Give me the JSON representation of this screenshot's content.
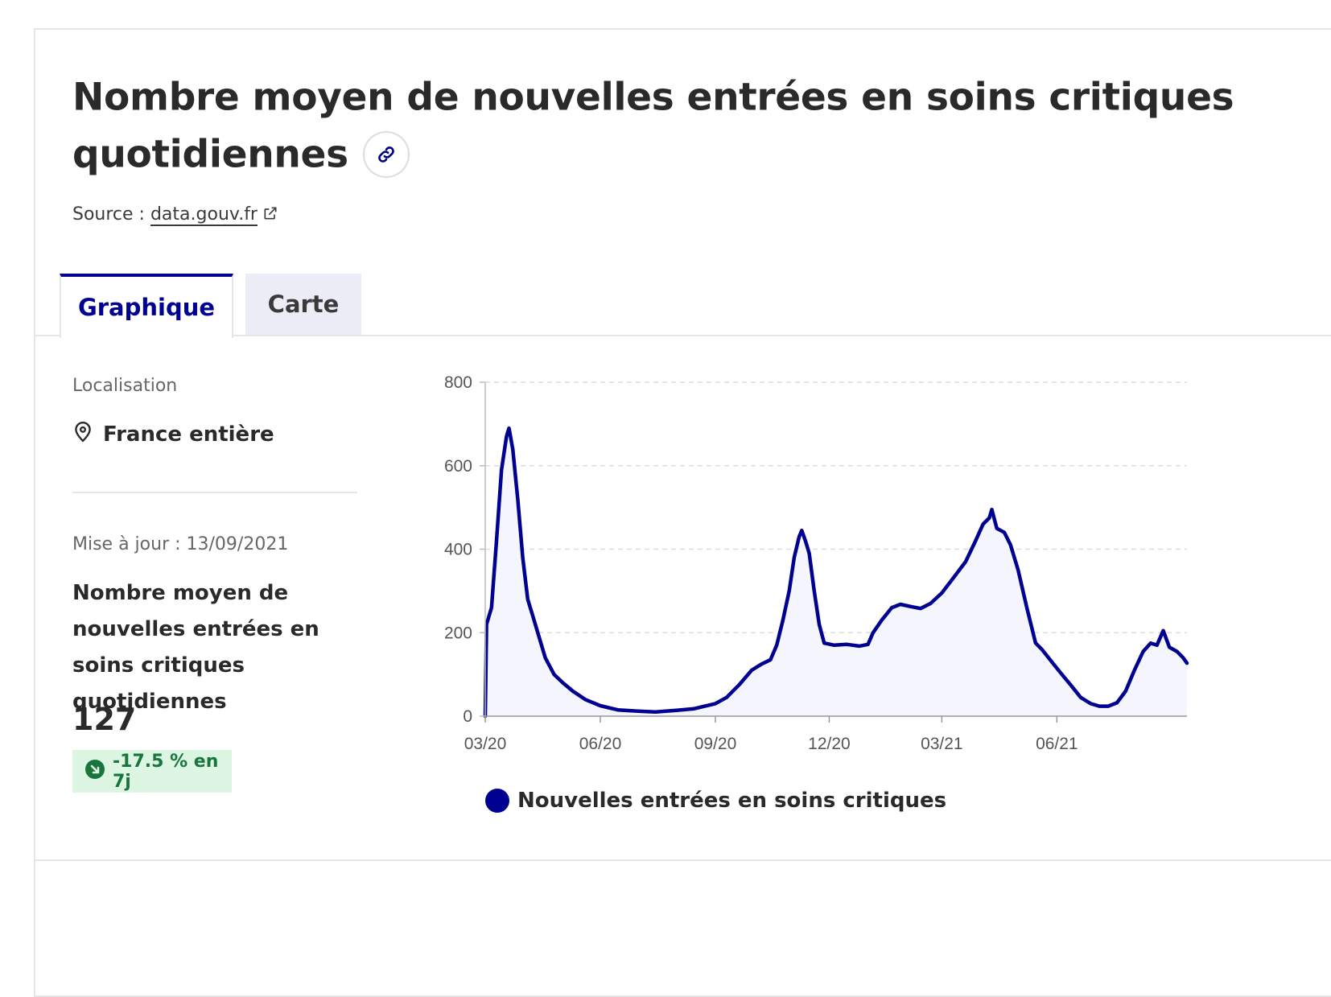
{
  "header": {
    "title": "Nombre moyen de nouvelles entrées en soins critiques quotidiennes",
    "link_icon": "link-icon",
    "source_label": "Source : ",
    "source_link": "data.gouv.fr",
    "external_icon": "external-link-icon"
  },
  "tabs": [
    {
      "label": "Graphique",
      "active": true
    },
    {
      "label": "Carte",
      "active": false
    }
  ],
  "sidebar": {
    "location_label": "Localisation",
    "location_value": "France entière",
    "location_icon": "map-pin-icon",
    "update_text": "Mise à jour : 13/09/2021",
    "kpi_label": "Nombre moyen de nouvelles entrées en soins critiques quotidiennes",
    "kpi_value": "127",
    "trend_text": "-17.5 % en 7j",
    "trend_icon": "arrow-down-right-icon",
    "trend_color": "#18753c",
    "trend_bg": "#ddf5e3"
  },
  "colors": {
    "accent": "#000091",
    "area_fill": "#f5f5fe"
  },
  "chart_data": {
    "type": "area",
    "x_ticks": [
      "03/20",
      "06/20",
      "09/20",
      "12/20",
      "03/21",
      "06/21"
    ],
    "y_ticks": [
      0,
      200,
      400,
      600,
      800
    ],
    "ylim": [
      0,
      800
    ],
    "xlim": [
      "2020-03-01",
      "2021-09-13"
    ],
    "grid": "horizontal dashed",
    "legend_position": "bottom",
    "series": [
      {
        "name": "Nouvelles entrées en soins critiques",
        "color": "#000091",
        "points": [
          [
            "2020-03-01",
            0
          ],
          [
            "2020-03-02",
            220
          ],
          [
            "2020-03-06",
            260
          ],
          [
            "2020-03-10",
            420
          ],
          [
            "2020-03-14",
            590
          ],
          [
            "2020-03-18",
            670
          ],
          [
            "2020-03-20",
            690
          ],
          [
            "2020-03-23",
            640
          ],
          [
            "2020-03-27",
            520
          ],
          [
            "2020-03-31",
            380
          ],
          [
            "2020-04-04",
            280
          ],
          [
            "2020-04-08",
            240
          ],
          [
            "2020-04-12",
            200
          ],
          [
            "2020-04-18",
            140
          ],
          [
            "2020-04-25",
            100
          ],
          [
            "2020-05-02",
            80
          ],
          [
            "2020-05-10",
            60
          ],
          [
            "2020-05-20",
            40
          ],
          [
            "2020-06-01",
            25
          ],
          [
            "2020-06-15",
            15
          ],
          [
            "2020-07-01",
            12
          ],
          [
            "2020-07-15",
            10
          ],
          [
            "2020-08-01",
            14
          ],
          [
            "2020-08-15",
            18
          ],
          [
            "2020-09-01",
            30
          ],
          [
            "2020-09-10",
            45
          ],
          [
            "2020-09-20",
            75
          ],
          [
            "2020-09-30",
            110
          ],
          [
            "2020-10-08",
            125
          ],
          [
            "2020-10-15",
            135
          ],
          [
            "2020-10-20",
            170
          ],
          [
            "2020-10-25",
            230
          ],
          [
            "2020-10-30",
            300
          ],
          [
            "2020-11-03",
            380
          ],
          [
            "2020-11-07",
            430
          ],
          [
            "2020-11-09",
            445
          ],
          [
            "2020-11-12",
            420
          ],
          [
            "2020-11-15",
            390
          ],
          [
            "2020-11-19",
            300
          ],
          [
            "2020-11-23",
            220
          ],
          [
            "2020-11-27",
            175
          ],
          [
            "2020-12-05",
            170
          ],
          [
            "2020-12-15",
            172
          ],
          [
            "2020-12-25",
            168
          ],
          [
            "2021-01-01",
            172
          ],
          [
            "2021-01-05",
            200
          ],
          [
            "2021-01-12",
            230
          ],
          [
            "2021-01-20",
            260
          ],
          [
            "2021-01-27",
            268
          ],
          [
            "2021-02-05",
            262
          ],
          [
            "2021-02-12",
            258
          ],
          [
            "2021-02-20",
            270
          ],
          [
            "2021-03-01",
            295
          ],
          [
            "2021-03-10",
            330
          ],
          [
            "2021-03-20",
            370
          ],
          [
            "2021-03-28",
            420
          ],
          [
            "2021-04-03",
            460
          ],
          [
            "2021-04-08",
            475
          ],
          [
            "2021-04-10",
            495
          ],
          [
            "2021-04-14",
            450
          ],
          [
            "2021-04-20",
            440
          ],
          [
            "2021-04-25",
            410
          ],
          [
            "2021-05-01",
            350
          ],
          [
            "2021-05-08",
            260
          ],
          [
            "2021-05-15",
            175
          ],
          [
            "2021-05-20",
            160
          ],
          [
            "2021-05-28",
            130
          ],
          [
            "2021-06-05",
            100
          ],
          [
            "2021-06-12",
            75
          ],
          [
            "2021-06-20",
            45
          ],
          [
            "2021-06-28",
            30
          ],
          [
            "2021-07-05",
            24
          ],
          [
            "2021-07-12",
            24
          ],
          [
            "2021-07-19",
            32
          ],
          [
            "2021-07-26",
            60
          ],
          [
            "2021-08-02",
            110
          ],
          [
            "2021-08-09",
            155
          ],
          [
            "2021-08-15",
            175
          ],
          [
            "2021-08-20",
            170
          ],
          [
            "2021-08-25",
            205
          ],
          [
            "2021-08-30",
            165
          ],
          [
            "2021-09-05",
            155
          ],
          [
            "2021-09-10",
            140
          ],
          [
            "2021-09-13",
            127
          ]
        ]
      }
    ]
  }
}
